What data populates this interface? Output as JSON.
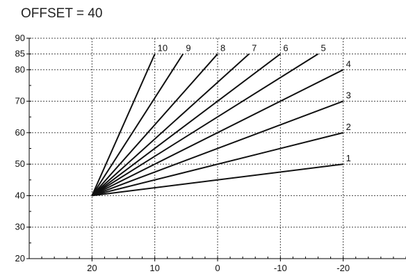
{
  "chart_data": {
    "type": "line",
    "title": "OFFSET = 40",
    "xlabel": "",
    "ylabel": "",
    "xlim": [
      30,
      -30
    ],
    "ylim": [
      20,
      90
    ],
    "x_ticks": [
      20,
      10,
      0,
      -10,
      -20
    ],
    "x_tick_labels": [
      "20",
      "10",
      "0",
      "-10",
      "-20"
    ],
    "y_ticks": [
      20,
      30,
      40,
      50,
      60,
      70,
      80,
      85,
      90
    ],
    "y_tick_labels": [
      "20",
      "30",
      "40",
      "50",
      "60",
      "70",
      "80",
      "85",
      "90"
    ],
    "grid": true,
    "grid_style": "dotted",
    "origin": {
      "x": 20,
      "y": 40
    },
    "series": [
      {
        "name": "1",
        "x": [
          20,
          -20
        ],
        "y": [
          40,
          50
        ]
      },
      {
        "name": "2",
        "x": [
          20,
          -20
        ],
        "y": [
          40,
          60
        ]
      },
      {
        "name": "3",
        "x": [
          20,
          -20
        ],
        "y": [
          40,
          70
        ]
      },
      {
        "name": "4",
        "x": [
          20,
          -20
        ],
        "y": [
          40,
          80
        ]
      },
      {
        "name": "5",
        "x": [
          20,
          -16
        ],
        "y": [
          40,
          85
        ]
      },
      {
        "name": "6",
        "x": [
          20,
          -10
        ],
        "y": [
          40,
          85
        ]
      },
      {
        "name": "7",
        "x": [
          20,
          -5
        ],
        "y": [
          40,
          85
        ]
      },
      {
        "name": "8",
        "x": [
          20,
          0
        ],
        "y": [
          40,
          85
        ]
      },
      {
        "name": "9",
        "x": [
          20,
          5.5
        ],
        "y": [
          40,
          85
        ]
      },
      {
        "name": "10",
        "x": [
          20,
          10
        ],
        "y": [
          40,
          85
        ]
      }
    ],
    "colors": {
      "line": "#111111",
      "grid": "#444444",
      "axis": "#000000"
    }
  }
}
